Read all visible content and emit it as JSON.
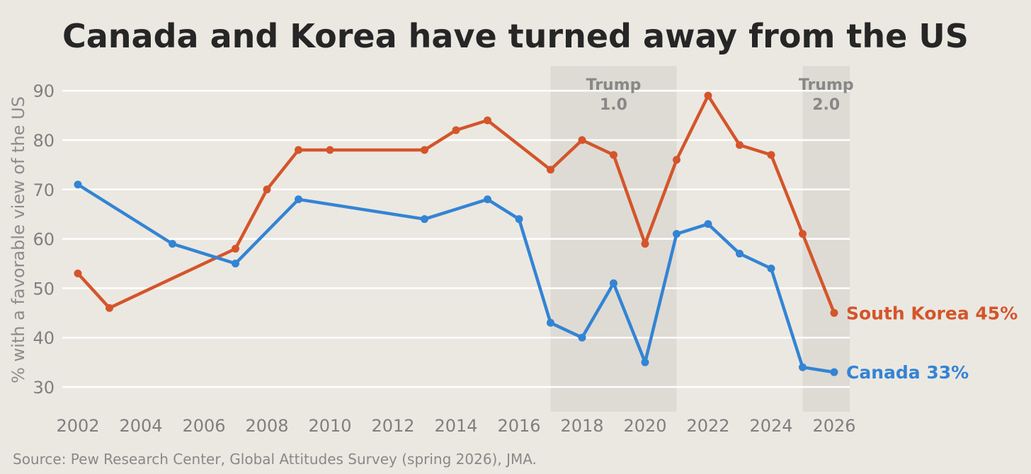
{
  "title": "Canada and Korea have turned away from the US",
  "source": "Source: Pew Research Center, Global Attitudes Survey (spring 2026), JMA.",
  "chart_data": {
    "type": "line",
    "title": "Canada and Korea have turned away from the US",
    "xlabel": "",
    "ylabel": "% with a favorable view of the US",
    "xlim": [
      2002,
      2026
    ],
    "ylim": [
      25,
      95
    ],
    "xticks": [
      2002,
      2004,
      2006,
      2008,
      2010,
      2012,
      2014,
      2016,
      2018,
      2020,
      2022,
      2024,
      2026
    ],
    "yticks": [
      30,
      40,
      50,
      60,
      70,
      80,
      90
    ],
    "grid": "horizontal",
    "colors": {
      "background": "#ebe8e1",
      "shade": "#dedbd4",
      "grid": "#ffffff"
    },
    "periods": [
      {
        "label_line1": "Trump",
        "label_line2": "1.0",
        "start": 2017,
        "end": 2021
      },
      {
        "label_line1": "Trump",
        "label_line2": "2.0",
        "start": 2025,
        "end": 2026.5
      }
    ],
    "series": [
      {
        "name": "South Korea",
        "end_label": "South Korea 45%",
        "color": "#d4552b",
        "points": [
          [
            2002,
            53
          ],
          [
            2003,
            46
          ],
          [
            2007,
            58
          ],
          [
            2008,
            70
          ],
          [
            2009,
            78
          ],
          [
            2010,
            78
          ],
          [
            2013,
            78
          ],
          [
            2014,
            82
          ],
          [
            2015,
            84
          ],
          [
            2017,
            74
          ],
          [
            2018,
            80
          ],
          [
            2019,
            77
          ],
          [
            2020,
            59
          ],
          [
            2021,
            76
          ],
          [
            2022,
            89
          ],
          [
            2023,
            79
          ],
          [
            2024,
            77
          ],
          [
            2025,
            61
          ],
          [
            2026,
            45
          ]
        ]
      },
      {
        "name": "Canada",
        "end_label": "Canada 33%",
        "color": "#3384d4",
        "points": [
          [
            2002,
            71
          ],
          [
            2005,
            59
          ],
          [
            2007,
            55
          ],
          [
            2009,
            68
          ],
          [
            2013,
            64
          ],
          [
            2015,
            68
          ],
          [
            2016,
            64
          ],
          [
            2017,
            43
          ],
          [
            2018,
            40
          ],
          [
            2019,
            51
          ],
          [
            2020,
            35
          ],
          [
            2021,
            61
          ],
          [
            2022,
            63
          ],
          [
            2023,
            57
          ],
          [
            2024,
            54
          ],
          [
            2025,
            34
          ],
          [
            2026,
            33
          ]
        ]
      }
    ]
  }
}
